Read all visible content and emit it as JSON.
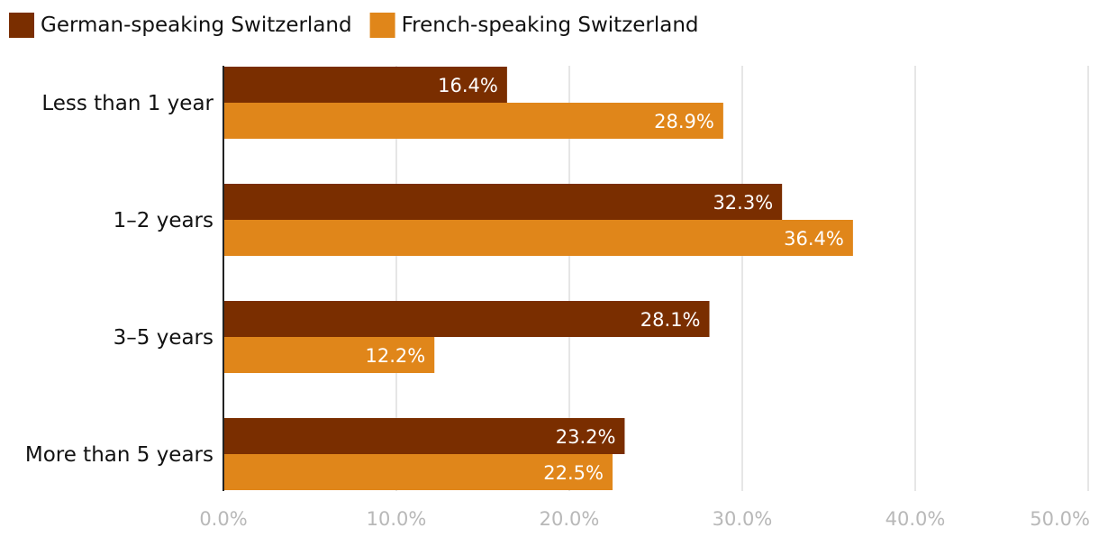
{
  "chart_data": {
    "type": "bar",
    "orientation": "horizontal",
    "categories": [
      "Less than 1 year",
      "1–2 years",
      "3–5 years",
      "More than 5 years"
    ],
    "series": [
      {
        "name": "German-speaking Switzerland",
        "color": "#7a2e00",
        "values": [
          16.4,
          32.3,
          28.1,
          23.2
        ],
        "labels": [
          "16.4%",
          "32.3%",
          "28.1%",
          "23.2%"
        ]
      },
      {
        "name": "French-speaking Switzerland",
        "color": "#e0861a",
        "values": [
          28.9,
          36.4,
          12.2,
          22.5
        ],
        "labels": [
          "28.9%",
          "36.4%",
          "12.2%",
          "22.5%"
        ]
      }
    ],
    "xlim": [
      0,
      50
    ],
    "x_ticks": [
      0,
      10,
      20,
      30,
      40,
      50
    ],
    "x_tick_labels": [
      "0.0%",
      "10.0%",
      "20.0%",
      "30.0%",
      "40.0%",
      "50.0%"
    ],
    "grid": true,
    "legend_position": "top-left",
    "title": "",
    "xlabel": "",
    "ylabel": ""
  }
}
